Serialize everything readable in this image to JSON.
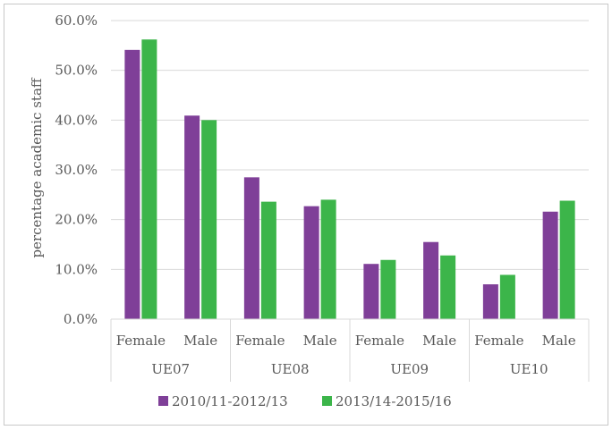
{
  "chart_data": {
    "type": "bar",
    "ylabel": "percentage academic staff",
    "ylim": [
      0,
      60
    ],
    "yticks": [
      "0.0%",
      "10.0%",
      "20.0%",
      "30.0%",
      "40.0%",
      "50.0%",
      "60.0%"
    ],
    "yticks_values": [
      0,
      10,
      20,
      30,
      40,
      50,
      60
    ],
    "grid": true,
    "legend_position": "bottom",
    "groups": [
      "UE07",
      "UE08",
      "UE09",
      "UE10"
    ],
    "categories": [
      "Female",
      "Male",
      "Female",
      "Male",
      "Female",
      "Male",
      "Female",
      "Male"
    ],
    "series": [
      {
        "name": "2010/11-2012/13",
        "color": "#7f3f98",
        "values": [
          54.1,
          40.9,
          28.5,
          22.7,
          11.1,
          15.5,
          7.0,
          21.6
        ]
      },
      {
        "name": "2013/14-2015/16",
        "color": "#3cb54a",
        "values": [
          56.2,
          40.0,
          23.6,
          24.0,
          11.9,
          12.8,
          8.9,
          23.8
        ]
      }
    ]
  }
}
